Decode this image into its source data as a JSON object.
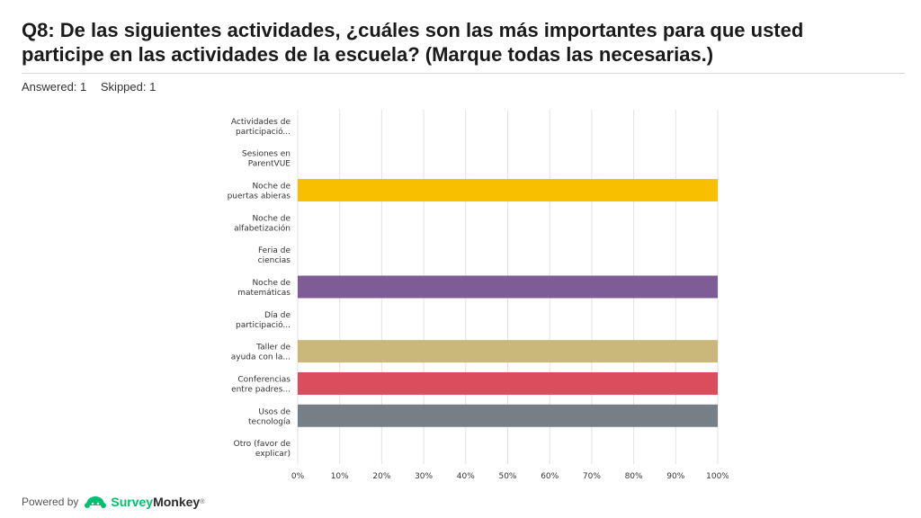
{
  "question": {
    "title": "Q8: De las siguientes actividades, ¿cuáles son las más importantes para que usted participe en las actividades de la escuela? (Marque todas las necesarias.)",
    "answered_label": "Answered: 1",
    "skipped_label": "Skipped: 1"
  },
  "footer": {
    "powered_by": "Powered by",
    "brand_part1": "Survey",
    "brand_part2": "Monkey",
    "trademark": "®"
  },
  "chart_data": {
    "type": "bar",
    "orientation": "horizontal",
    "categories": [
      [
        "Actividades de",
        "participació..."
      ],
      [
        "Sesiones en",
        "ParentVUE"
      ],
      [
        "Noche de",
        "puertas abieras"
      ],
      [
        "Noche de",
        "alfabetización"
      ],
      [
        "Feria de",
        "ciencias"
      ],
      [
        "Noche de",
        "matemáticas"
      ],
      [
        "Día de",
        "participació..."
      ],
      [
        "Taller de",
        "ayuda con la..."
      ],
      [
        "Conferencias",
        "entre padres..."
      ],
      [
        "Usos de",
        "tecnología"
      ],
      [
        "Otro (favor de",
        "explicar)"
      ]
    ],
    "values": [
      0,
      0,
      100,
      0,
      0,
      100,
      0,
      100,
      100,
      100,
      0
    ],
    "colors": [
      "#f2b705",
      "#f2b705",
      "#f7bf00",
      "#f2b705",
      "#f2b705",
      "#7e5c96",
      "#7e5c96",
      "#c9b87a",
      "#db4c5c",
      "#777f86",
      "#777f86"
    ],
    "xlim": [
      0,
      100
    ],
    "ticks": [
      "0%",
      "10%",
      "20%",
      "30%",
      "40%",
      "50%",
      "60%",
      "70%",
      "80%",
      "90%",
      "100%"
    ],
    "tick_values": [
      0,
      10,
      20,
      30,
      40,
      50,
      60,
      70,
      80,
      90,
      100
    ],
    "grid": true,
    "grid_color": "#e2e2e2",
    "xlabel": "",
    "ylabel": ""
  }
}
